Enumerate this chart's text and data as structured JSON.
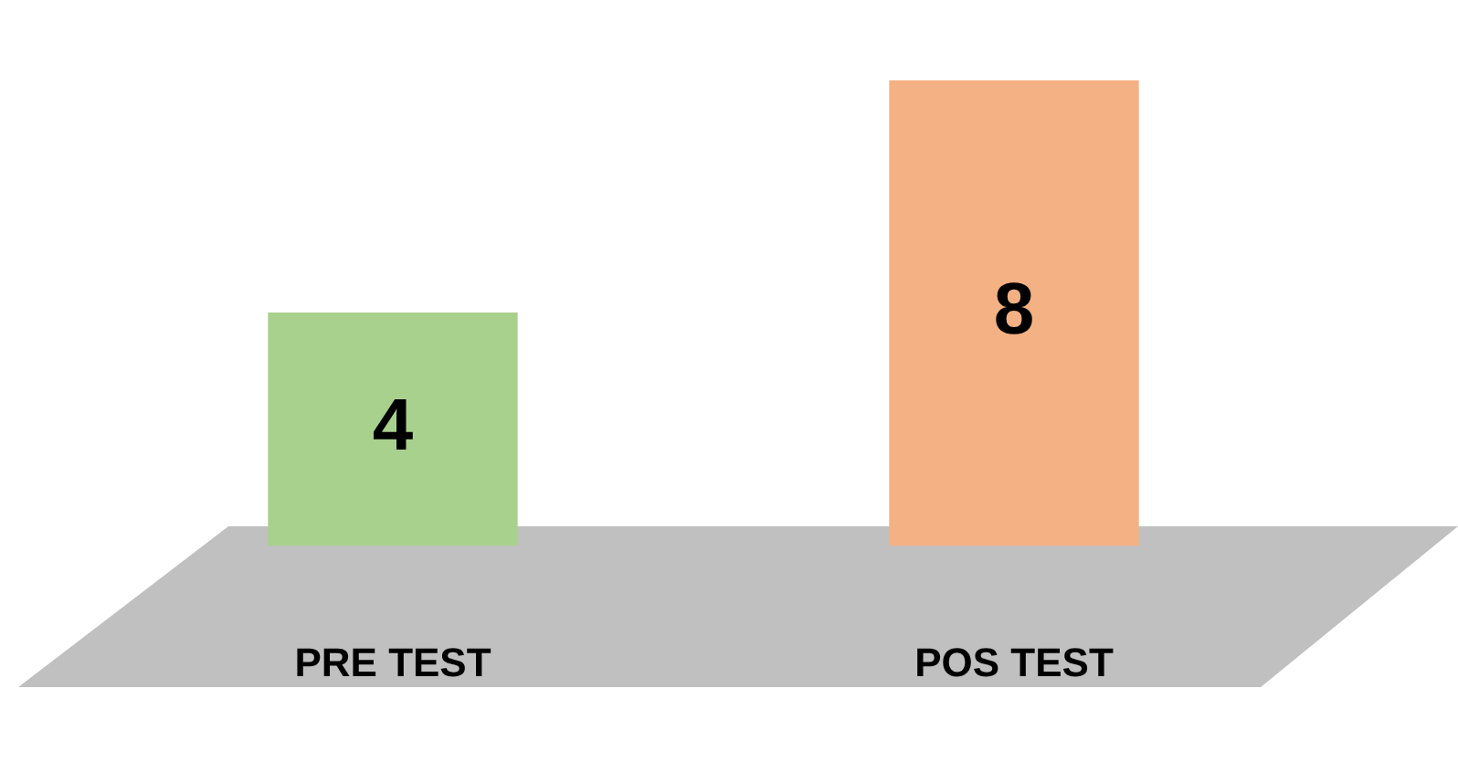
{
  "chart_data": {
    "type": "bar",
    "categories": [
      "PRE TEST",
      "POS TEST"
    ],
    "values": [
      4,
      8
    ],
    "colors": [
      "#a9d18e",
      "#f4b183"
    ],
    "data_labels": true,
    "tick_labels": "x",
    "grid": false,
    "legend": false
  }
}
